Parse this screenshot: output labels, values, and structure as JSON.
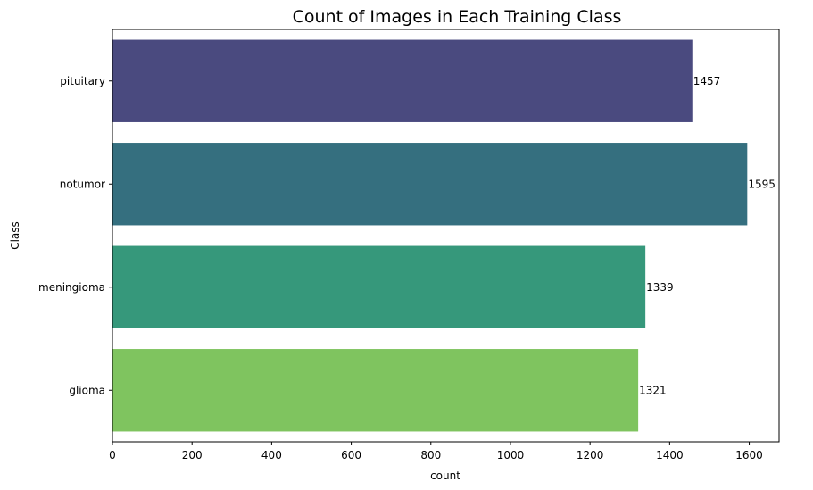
{
  "chart_data": {
    "type": "bar",
    "orientation": "horizontal",
    "title": "Count of Images in Each Training Class",
    "xlabel": "count",
    "ylabel": "Class",
    "categories": [
      "pituitary",
      "notumor",
      "meningioma",
      "glioma"
    ],
    "values": [
      1457,
      1595,
      1339,
      1321
    ],
    "data_labels": [
      "1457",
      "1595",
      "1339",
      "1321"
    ],
    "colors": [
      "#4a4a7f",
      "#356f7f",
      "#36987b",
      "#7fc45f"
    ],
    "xlim": [
      0,
      1675
    ],
    "xticks": [
      0,
      200,
      400,
      600,
      800,
      1000,
      1200,
      1400,
      1600
    ],
    "xtick_labels": [
      "0",
      "200",
      "400",
      "600",
      "800",
      "1000",
      "1200",
      "1400",
      "1600"
    ],
    "grid": false,
    "legend": "none"
  }
}
